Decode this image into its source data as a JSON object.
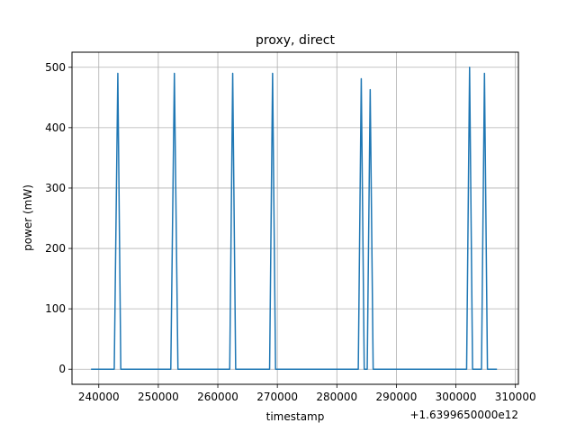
{
  "chart_data": {
    "type": "line",
    "title": "proxy, direct",
    "xlabel": "timestamp",
    "ylabel": "power (mW)",
    "x_offset_label": "+1.6399650000e12",
    "xlim": [
      235500,
      310500
    ],
    "ylim": [
      -25,
      525
    ],
    "x_ticks": [
      240000,
      250000,
      260000,
      270000,
      280000,
      290000,
      300000,
      310000
    ],
    "x_tick_labels": [
      "240000",
      "250000",
      "260000",
      "270000",
      "280000",
      "290000",
      "300000",
      "310000"
    ],
    "y_ticks": [
      0,
      100,
      200,
      300,
      400,
      500
    ],
    "y_tick_labels": [
      "0",
      "100",
      "200",
      "300",
      "400",
      "500"
    ],
    "grid": true,
    "line_color": "#1f77b4",
    "series": [
      {
        "x": [
          238700,
          242600,
          243200,
          243700,
          252100,
          252700,
          253300,
          262000,
          262500,
          263000,
          268700,
          269200,
          269700,
          283600,
          284100,
          284600,
          285100,
          285600,
          286100,
          301800,
          302300,
          302800,
          304300,
          304800,
          305300,
          306900
        ],
        "values": [
          0,
          0,
          490,
          0,
          0,
          490,
          0,
          0,
          490,
          0,
          0,
          490,
          0,
          0,
          481,
          0,
          0,
          463,
          0,
          0,
          500,
          0,
          0,
          490,
          0,
          0
        ]
      }
    ]
  }
}
